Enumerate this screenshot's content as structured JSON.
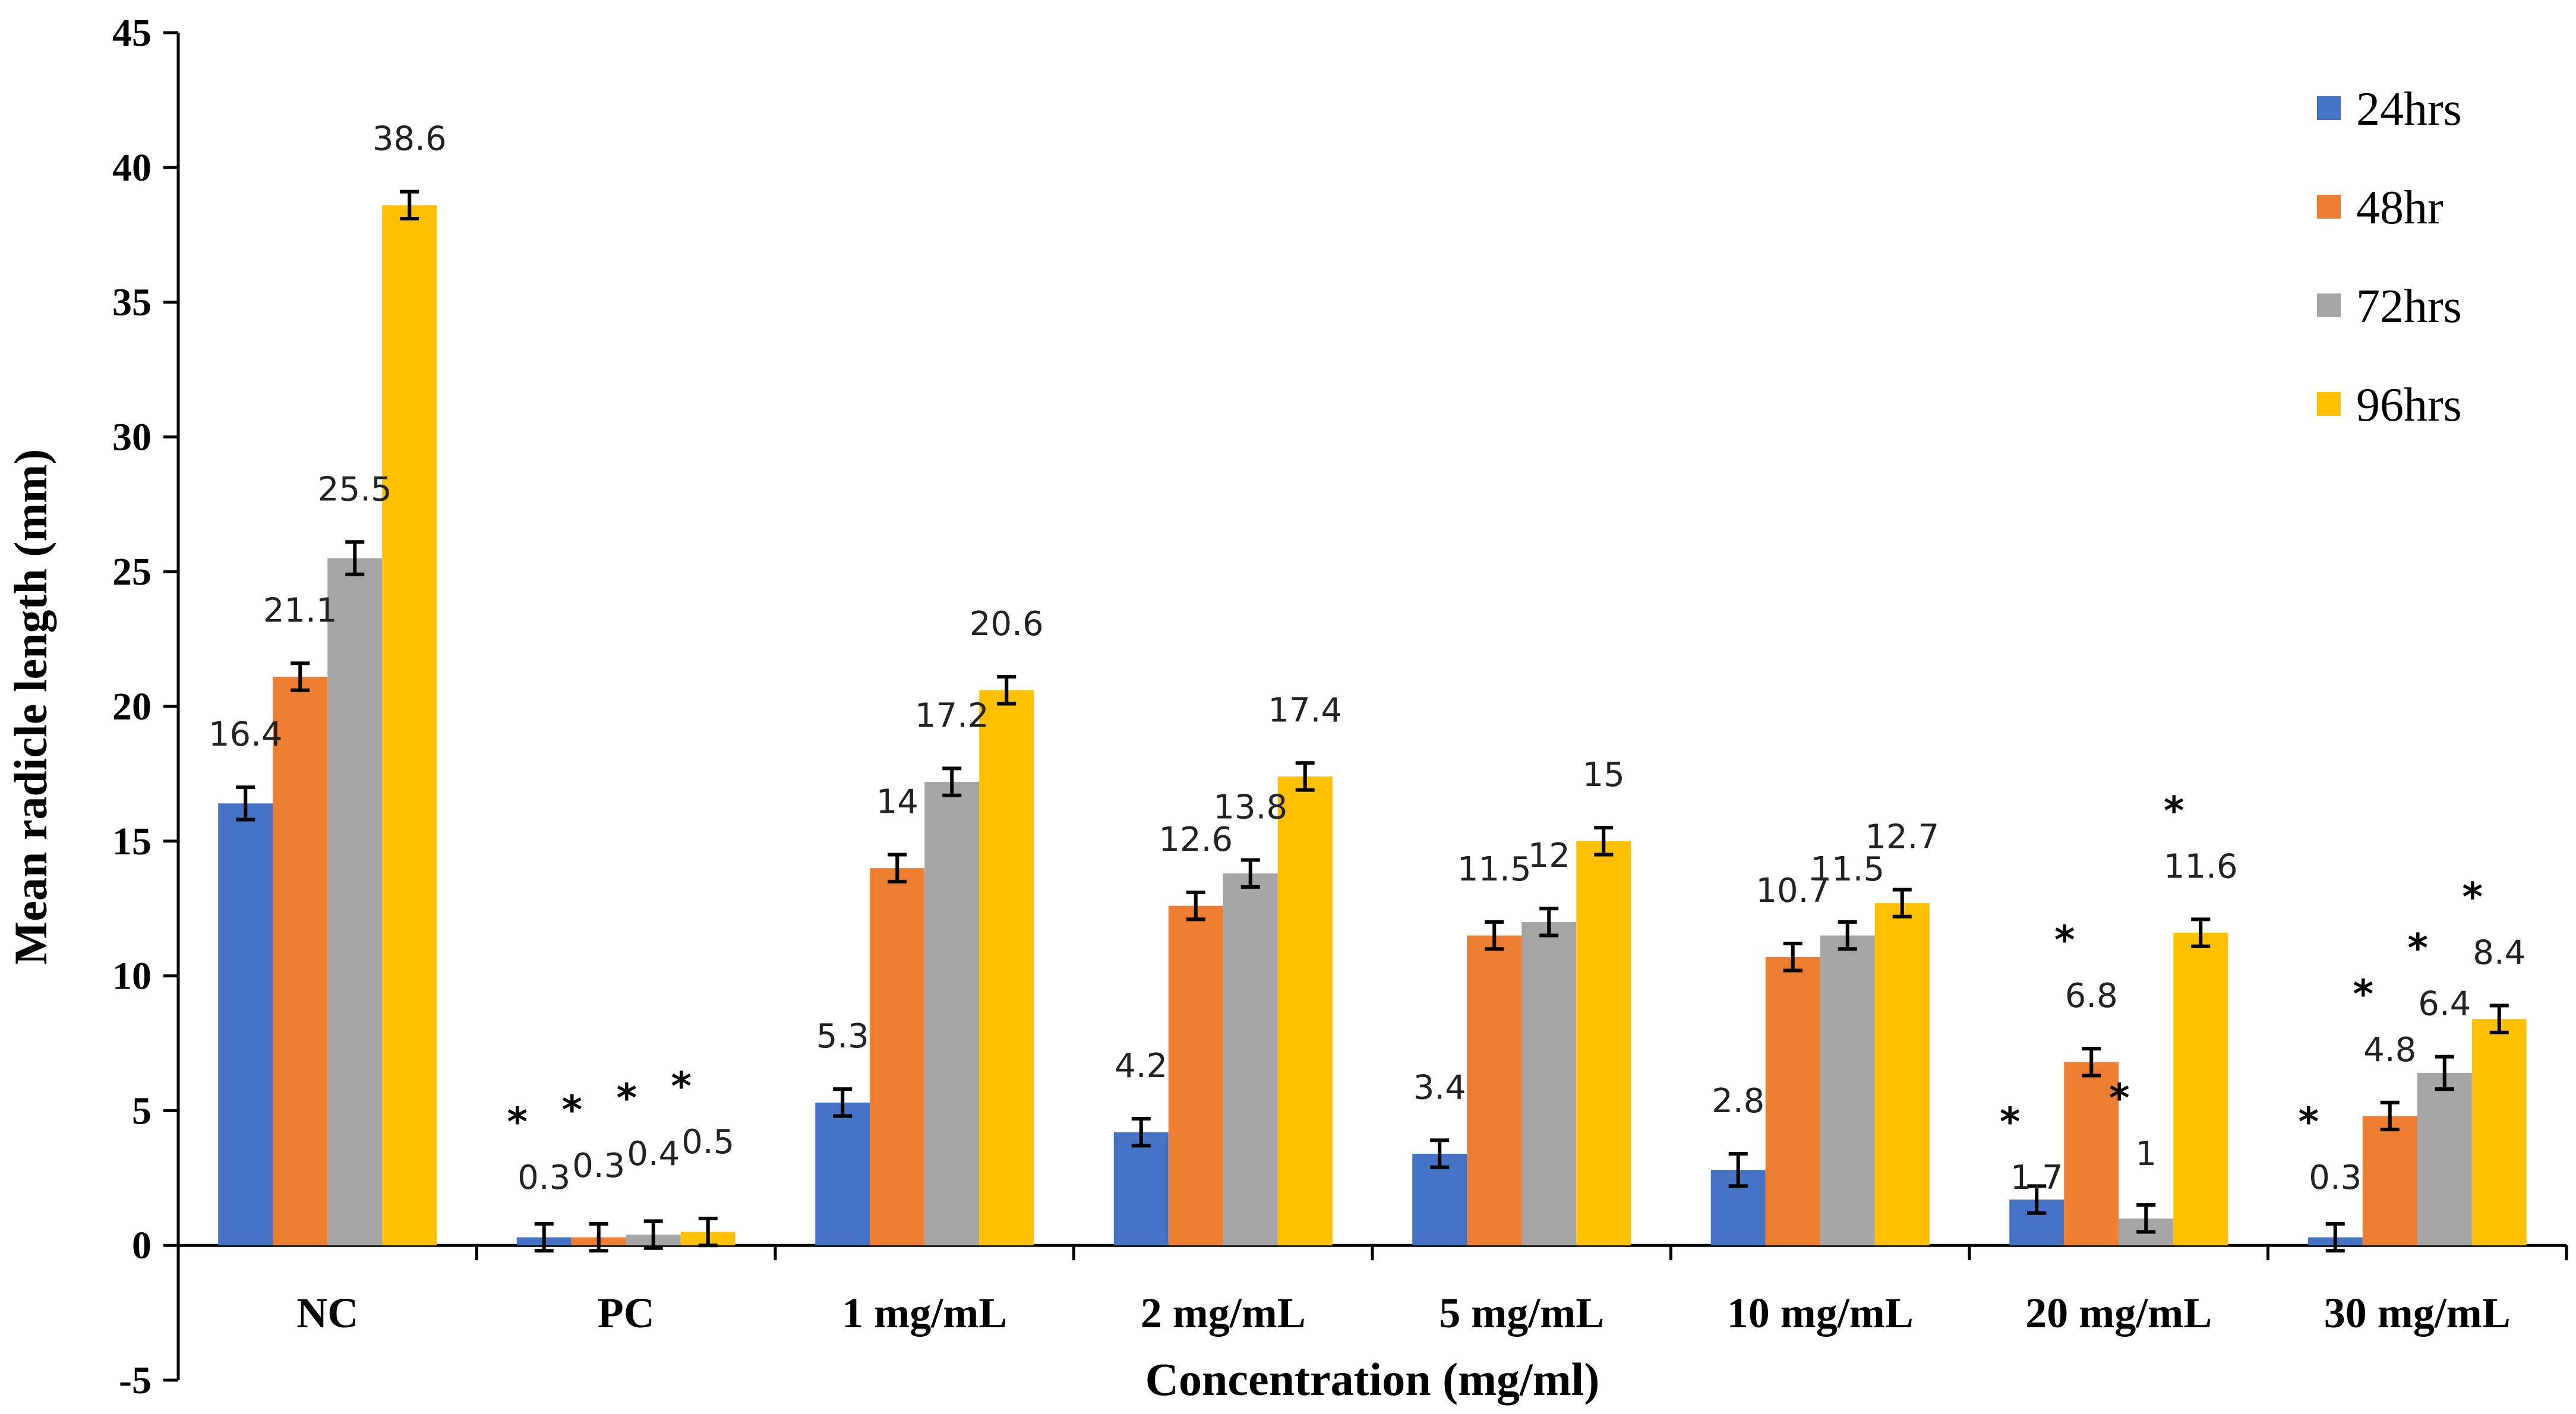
{
  "chart_data": {
    "type": "bar",
    "xlabel": "Concentration (mg/ml)",
    "ylabel": "Mean radicle length (mm)",
    "ylim": [
      -5,
      45
    ],
    "yticks": [
      "-5",
      "0",
      "5",
      "10",
      "15",
      "20",
      "25",
      "30",
      "35",
      "40",
      "45"
    ],
    "categories": [
      "NC",
      "PC",
      "1 mg/mL",
      "2 mg/mL",
      "5 mg/mL",
      "10 mg/mL",
      "20 mg/mL",
      "30 mg/mL"
    ],
    "legend_position": "top-right",
    "series": [
      {
        "name": "24hrs",
        "color": "#4472C4",
        "values": [
          16.4,
          0.3,
          5.3,
          4.2,
          3.4,
          2.8,
          1.7,
          0.3
        ],
        "labels": [
          "16.4",
          "0.3",
          "5.3",
          "4.2",
          "3.4",
          "2.8",
          "1.7",
          "0.3"
        ],
        "errors": [
          0.6,
          0.5,
          0.5,
          0.5,
          0.5,
          0.6,
          0.5,
          0.5
        ],
        "stars": [
          false,
          true,
          false,
          false,
          false,
          false,
          true,
          true
        ]
      },
      {
        "name": "48hr",
        "color": "#ED7D31",
        "values": [
          21.1,
          0.3,
          14,
          12.6,
          11.5,
          10.7,
          6.8,
          4.8
        ],
        "labels": [
          "21.1",
          "0.3",
          "14",
          "12.6",
          "11.5",
          "10.7",
          "6.8",
          "4.8"
        ],
        "errors": [
          0.5,
          0.5,
          0.5,
          0.5,
          0.5,
          0.5,
          0.5,
          0.5
        ],
        "stars": [
          false,
          true,
          false,
          false,
          false,
          false,
          true,
          true
        ]
      },
      {
        "name": "72hrs",
        "color": "#A5A5A5",
        "values": [
          25.5,
          0.4,
          17.2,
          13.8,
          12,
          11.5,
          1,
          6.4
        ],
        "labels": [
          "25.5",
          "0.4",
          "17.2",
          "13.8",
          "12",
          "11.5",
          "1",
          "6.4"
        ],
        "errors": [
          0.6,
          0.5,
          0.5,
          0.5,
          0.5,
          0.5,
          0.5,
          0.6
        ],
        "stars": [
          false,
          true,
          false,
          false,
          false,
          false,
          true,
          true
        ]
      },
      {
        "name": "96hrs",
        "color": "#FFC000",
        "values": [
          38.6,
          0.5,
          20.6,
          17.4,
          15,
          12.7,
          11.6,
          8.4
        ],
        "labels": [
          "38.6",
          "0.5",
          "20.6",
          "17.4",
          "15",
          "12.7",
          "11.6",
          "8.4"
        ],
        "errors": [
          0.5,
          0.5,
          0.5,
          0.5,
          0.5,
          0.5,
          0.5,
          0.5
        ],
        "stars": [
          false,
          true,
          false,
          false,
          false,
          false,
          true,
          true
        ]
      }
    ],
    "star_symbol": "*"
  }
}
